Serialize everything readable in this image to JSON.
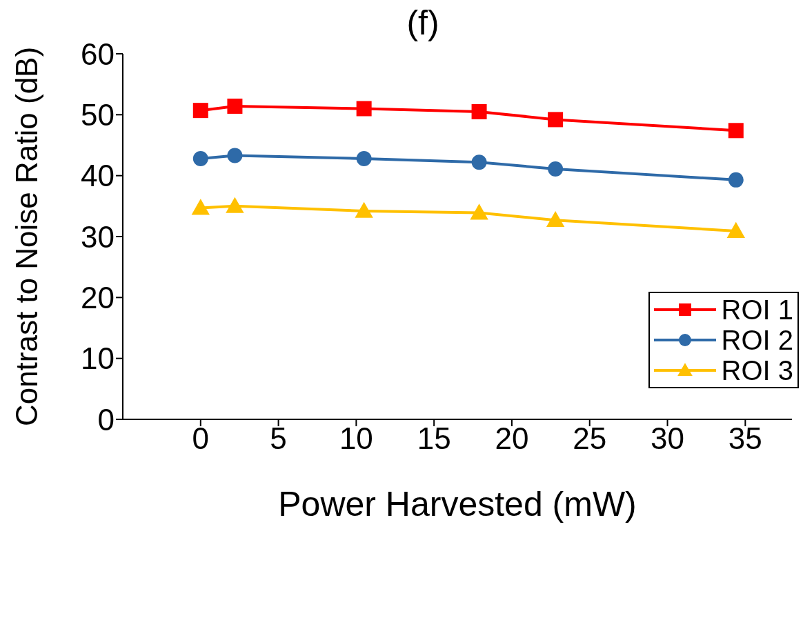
{
  "chart_data": {
    "type": "line",
    "title": "(f)",
    "xlabel": "Power Harvested (mW)",
    "ylabel": "Contrast to Noise Ratio (dB)",
    "x": [
      0,
      2.2,
      10.5,
      17.9,
      22.8,
      34.4
    ],
    "series": [
      {
        "name": "ROI 1",
        "color": "#ff0000",
        "marker": "square",
        "values": [
          50.7,
          51.4,
          51.0,
          50.5,
          49.2,
          47.4
        ]
      },
      {
        "name": "ROI 2",
        "color": "#2e6aa8",
        "marker": "circle",
        "values": [
          42.8,
          43.3,
          42.8,
          42.2,
          41.1,
          39.3
        ]
      },
      {
        "name": "ROI 3",
        "color": "#ffc000",
        "marker": "triangle",
        "values": [
          34.7,
          35.0,
          34.2,
          33.9,
          32.7,
          30.9
        ]
      }
    ],
    "xlim": [
      -5,
      38
    ],
    "xticks": [
      0,
      5,
      10,
      15,
      20,
      25,
      30,
      35
    ],
    "ylim": [
      0,
      60
    ],
    "yticks": [
      0,
      10,
      20,
      30,
      40,
      50,
      60
    ],
    "grid": false,
    "legend": "bottom right",
    "line_style": "solid"
  }
}
